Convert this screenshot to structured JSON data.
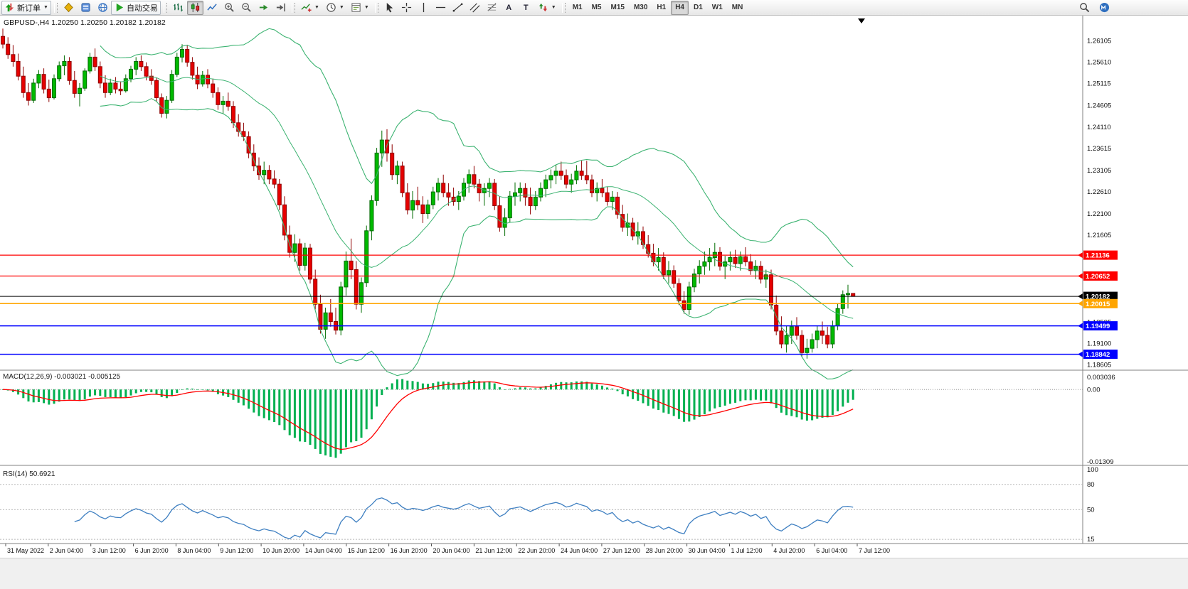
{
  "toolbar": {
    "new_order": {
      "label": "新订单"
    },
    "autotrading": {
      "label": "自动交易"
    },
    "panel_buttons": [
      "market-watch-icon",
      "navigator-icon",
      "community-icon"
    ],
    "chart_buttons": [
      "bars-icon",
      "candles-icon",
      "line-chart-icon",
      "zoom-in-icon",
      "zoom-out-icon",
      "autoscroll-icon",
      "chart-shift-icon"
    ],
    "dropdown_buttons": [
      "indicators-icon",
      "periods-icon",
      "templates-icon"
    ],
    "line_tools": [
      "cursor-icon",
      "crosshair-icon",
      "vline-icon",
      "hline-icon",
      "trendline-icon",
      "channel-icon",
      "fibonacci-icon",
      "text-icon",
      "label-icon",
      "arrows-icon"
    ],
    "text_tool_glyphs": {
      "text-icon": "A",
      "label-icon": "T"
    },
    "timeframes": [
      "M1",
      "M5",
      "M15",
      "M30",
      "H1",
      "H4",
      "D1",
      "W1",
      "MN"
    ],
    "active_timeframe": "H4",
    "active_chart_type": "candles-icon",
    "right_buttons": [
      "search-icon",
      "mql-icon"
    ]
  },
  "chart_header": {
    "symbol_period": "GBPUSD-,H4",
    "ohlc": "1.20250 1.20250 1.20182 1.20182"
  },
  "colors": {
    "bull": "#00BA00",
    "bear": "#E60000",
    "bull_stroke": "#006B00",
    "bear_stroke": "#8F0000",
    "bollinger": "#3CB371",
    "macd_hist": "#00B050",
    "macd_signal": "#FF0000",
    "rsi": "#3E7FC1",
    "axis_text": "#111111",
    "separator": "#808080"
  },
  "chart_data": {
    "type": "candlestick",
    "symbol": "GBPUSD",
    "period": "H4",
    "bollinger": {
      "period": 20,
      "deviations": 2
    },
    "price_ticks": [
      1.26105,
      1.2561,
      1.25115,
      1.24605,
      1.2411,
      1.23615,
      1.23105,
      1.2261,
      1.221,
      1.21605,
      1.2111,
      1.206,
      1.20105,
      1.19595,
      1.191,
      1.18605
    ],
    "levels": [
      {
        "price": 1.21136,
        "color": "#FF0000",
        "lw": 1.3
      },
      {
        "price": 1.20652,
        "color": "#FF0000",
        "lw": 1.3
      },
      {
        "price": 1.20182,
        "color": "#000000",
        "lw": 1.0
      },
      {
        "price": 1.20015,
        "color": "#FFA500",
        "lw": 1.5
      },
      {
        "price": 1.19499,
        "color": "#0000FF",
        "lw": 1.5
      },
      {
        "price": 1.18842,
        "color": "#0000FF",
        "lw": 1.5
      }
    ],
    "macd": {
      "name": "MACD(12,26,9)",
      "values": "-0.003021 -0.005125",
      "scale_top": "0.003036",
      "scale_zero": "0.00",
      "scale_bottom": "-0.01309",
      "fast": 12,
      "slow": 26,
      "signal": 9
    },
    "rsi": {
      "name": "RSI(14)",
      "value": "50.6921",
      "period": 14,
      "scale_labels": [
        100,
        80,
        50,
        15
      ],
      "range": [
        10,
        100
      ],
      "levels": [
        80,
        50,
        15
      ]
    },
    "time_labels": [
      "31 May 2022",
      "2 Jun 04:00",
      "3 Jun 12:00",
      "6 Jun 20:00",
      "8 Jun 04:00",
      "9 Jun 12:00",
      "10 Jun 20:00",
      "14 Jun 04:00",
      "15 Jun 12:00",
      "16 Jun 20:00",
      "20 Jun 04:00",
      "21 Jun 12:00",
      "22 Jun 20:00",
      "24 Jun 04:00",
      "27 Jun 12:00",
      "28 Jun 20:00",
      "30 Jun 04:00",
      "1 Jul 12:00",
      "4 Jul 20:00",
      "6 Jul 04:00",
      "7 Jul 12:00"
    ],
    "candles": [
      [
        1.262,
        1.2638,
        1.2592,
        1.2602
      ],
      [
        1.2602,
        1.2618,
        1.2568,
        1.2578
      ],
      [
        1.2578,
        1.26,
        1.255,
        1.2562
      ],
      [
        1.2562,
        1.258,
        1.2518,
        1.2528
      ],
      [
        1.2528,
        1.255,
        1.2478,
        1.249
      ],
      [
        1.249,
        1.2512,
        1.246,
        1.2472
      ],
      [
        1.2472,
        1.2522,
        1.2466,
        1.2512
      ],
      [
        1.2512,
        1.2542,
        1.25,
        1.2532
      ],
      [
        1.2532,
        1.2546,
        1.2488,
        1.2498
      ],
      [
        1.2498,
        1.252,
        1.2468,
        1.2478
      ],
      [
        1.2478,
        1.2532,
        1.2474,
        1.2522
      ],
      [
        1.2522,
        1.2562,
        1.2516,
        1.2552
      ],
      [
        1.2552,
        1.2576,
        1.253,
        1.2562
      ],
      [
        1.2562,
        1.2572,
        1.2508,
        1.2518
      ],
      [
        1.2518,
        1.254,
        1.2478,
        1.2488
      ],
      [
        1.2488,
        1.2512,
        1.2458,
        1.25
      ],
      [
        1.25,
        1.2546,
        1.2494,
        1.254
      ],
      [
        1.254,
        1.2582,
        1.2534,
        1.2572
      ],
      [
        1.2572,
        1.2592,
        1.254,
        1.255
      ],
      [
        1.255,
        1.2562,
        1.25,
        1.2512
      ],
      [
        1.2512,
        1.253,
        1.2478,
        1.249
      ],
      [
        1.249,
        1.2522,
        1.2484,
        1.2512
      ],
      [
        1.2512,
        1.2526,
        1.2488,
        1.2498
      ],
      [
        1.2498,
        1.2516,
        1.2484,
        1.2494
      ],
      [
        1.2494,
        1.2532,
        1.249,
        1.2522
      ],
      [
        1.2522,
        1.2552,
        1.2514,
        1.2544
      ],
      [
        1.2544,
        1.2572,
        1.253,
        1.2562
      ],
      [
        1.2562,
        1.2576,
        1.254,
        1.255
      ],
      [
        1.255,
        1.256,
        1.2518,
        1.2528
      ],
      [
        1.2528,
        1.2544,
        1.2508,
        1.2518
      ],
      [
        1.2518,
        1.2524,
        1.2468,
        1.2478
      ],
      [
        1.2478,
        1.2488,
        1.2432,
        1.2442
      ],
      [
        1.2442,
        1.2482,
        1.243,
        1.2472
      ],
      [
        1.2472,
        1.2542,
        1.2466,
        1.2532
      ],
      [
        1.2532,
        1.2582,
        1.2526,
        1.2572
      ],
      [
        1.2572,
        1.2602,
        1.256,
        1.259
      ],
      [
        1.259,
        1.2599,
        1.255,
        1.256
      ],
      [
        1.256,
        1.2572,
        1.252,
        1.253
      ],
      [
        1.253,
        1.255,
        1.2498,
        1.251
      ],
      [
        1.251,
        1.254,
        1.2504,
        1.253
      ],
      [
        1.253,
        1.2544,
        1.25,
        1.251
      ],
      [
        1.251,
        1.2522,
        1.2478,
        1.249
      ],
      [
        1.249,
        1.2502,
        1.245,
        1.2462
      ],
      [
        1.2462,
        1.2482,
        1.244,
        1.247
      ],
      [
        1.247,
        1.249,
        1.2448,
        1.2458
      ],
      [
        1.2458,
        1.247,
        1.2408,
        1.242
      ],
      [
        1.242,
        1.244,
        1.2388,
        1.24
      ],
      [
        1.24,
        1.242,
        1.2378,
        1.2388
      ],
      [
        1.2388,
        1.24,
        1.2338,
        1.235
      ],
      [
        1.235,
        1.237,
        1.2308,
        1.232
      ],
      [
        1.232,
        1.234,
        1.2288,
        1.23
      ],
      [
        1.23,
        1.233,
        1.2278,
        1.231
      ],
      [
        1.231,
        1.2322,
        1.2278,
        1.229
      ],
      [
        1.229,
        1.231,
        1.2268,
        1.2278
      ],
      [
        1.2278,
        1.229,
        1.2218,
        1.223
      ],
      [
        1.223,
        1.225,
        1.2148,
        1.216
      ],
      [
        1.216,
        1.2182,
        1.2108,
        1.212
      ],
      [
        1.212,
        1.2162,
        1.2098,
        1.214
      ],
      [
        1.214,
        1.2152,
        1.2078,
        1.209
      ],
      [
        1.209,
        1.2142,
        1.2078,
        1.213
      ],
      [
        1.213,
        1.214,
        1.2048,
        1.2058
      ],
      [
        1.2058,
        1.208,
        1.1988,
        1.2
      ],
      [
        1.2,
        1.2022,
        1.1932,
        1.1942
      ],
      [
        1.1942,
        1.1992,
        1.192,
        1.198
      ],
      [
        1.198,
        1.2012,
        1.1948,
        1.196
      ],
      [
        1.196,
        1.1992,
        1.193,
        1.194
      ],
      [
        1.194,
        1.2052,
        1.1928,
        1.204
      ],
      [
        1.204,
        1.2122,
        1.202,
        1.21
      ],
      [
        1.21,
        1.2152,
        1.2058,
        1.208
      ],
      [
        1.208,
        1.21,
        1.1988,
        1.2
      ],
      [
        1.2,
        1.2062,
        1.198,
        1.205
      ],
      [
        1.205,
        1.2182,
        1.204,
        1.217
      ],
      [
        1.217,
        1.2252,
        1.2148,
        1.224
      ],
      [
        1.224,
        1.2362,
        1.2228,
        1.235
      ],
      [
        1.235,
        1.2402,
        1.2318,
        1.238
      ],
      [
        1.238,
        1.2405,
        1.233,
        1.235
      ],
      [
        1.235,
        1.237,
        1.2288,
        1.23
      ],
      [
        1.23,
        1.2332,
        1.2278,
        1.232
      ],
      [
        1.232,
        1.233,
        1.2248,
        1.2258
      ],
      [
        1.2258,
        1.228,
        1.2208,
        1.2218
      ],
      [
        1.2218,
        1.2262,
        1.2198,
        1.224
      ],
      [
        1.224,
        1.2272,
        1.2218,
        1.223
      ],
      [
        1.223,
        1.225,
        1.2188,
        1.221
      ],
      [
        1.221,
        1.2242,
        1.2198,
        1.223
      ],
      [
        1.223,
        1.2272,
        1.222,
        1.226
      ],
      [
        1.226,
        1.2292,
        1.224,
        1.228
      ],
      [
        1.228,
        1.23,
        1.2248,
        1.2258
      ],
      [
        1.2258,
        1.228,
        1.2228,
        1.2248
      ],
      [
        1.2248,
        1.227,
        1.2228,
        1.2238
      ],
      [
        1.2238,
        1.2262,
        1.2218,
        1.225
      ],
      [
        1.225,
        1.2292,
        1.224,
        1.228
      ],
      [
        1.228,
        1.2312,
        1.2258,
        1.23
      ],
      [
        1.23,
        1.232,
        1.2268,
        1.2278
      ],
      [
        1.2278,
        1.229,
        1.2238,
        1.2258
      ],
      [
        1.2258,
        1.228,
        1.2228,
        1.2268
      ],
      [
        1.2268,
        1.2292,
        1.2248,
        1.228
      ],
      [
        1.228,
        1.229,
        1.2218,
        1.2228
      ],
      [
        1.2228,
        1.225,
        1.2168,
        1.2178
      ],
      [
        1.2178,
        1.2222,
        1.2158,
        1.22
      ],
      [
        1.22,
        1.2262,
        1.219,
        1.225
      ],
      [
        1.225,
        1.2282,
        1.2228,
        1.2258
      ],
      [
        1.2258,
        1.2282,
        1.2238,
        1.2268
      ],
      [
        1.2268,
        1.228,
        1.2228,
        1.2248
      ],
      [
        1.2248,
        1.227,
        1.2208,
        1.2228
      ],
      [
        1.2228,
        1.2262,
        1.2218,
        1.2248
      ],
      [
        1.2248,
        1.2282,
        1.2238,
        1.2268
      ],
      [
        1.2268,
        1.23,
        1.2248,
        1.2288
      ],
      [
        1.2288,
        1.2312,
        1.2268,
        1.2298
      ],
      [
        1.2298,
        1.2322,
        1.2278,
        1.2308
      ],
      [
        1.2308,
        1.233,
        1.2288,
        1.2298
      ],
      [
        1.2298,
        1.2312,
        1.2268,
        1.2278
      ],
      [
        1.2278,
        1.2302,
        1.2258,
        1.2288
      ],
      [
        1.2288,
        1.2322,
        1.2278,
        1.2308
      ],
      [
        1.2308,
        1.2332,
        1.2288,
        1.2298
      ],
      [
        1.2298,
        1.2332,
        1.2278,
        1.2288
      ],
      [
        1.2288,
        1.23,
        1.2248,
        1.2258
      ],
      [
        1.2258,
        1.2282,
        1.2238,
        1.2268
      ],
      [
        1.2268,
        1.229,
        1.2248,
        1.2258
      ],
      [
        1.2258,
        1.2272,
        1.2228,
        1.2238
      ],
      [
        1.2238,
        1.2262,
        1.2218,
        1.2248
      ],
      [
        1.2248,
        1.226,
        1.2198,
        1.2208
      ],
      [
        1.2208,
        1.223,
        1.2168,
        1.2178
      ],
      [
        1.2178,
        1.221,
        1.2158,
        1.2188
      ],
      [
        1.2188,
        1.22,
        1.2148,
        1.2158
      ],
      [
        1.2158,
        1.219,
        1.2138,
        1.2168
      ],
      [
        1.2168,
        1.218,
        1.2128,
        1.2138
      ],
      [
        1.2138,
        1.216,
        1.2108,
        1.2118
      ],
      [
        1.2118,
        1.214,
        1.2088,
        1.2098
      ],
      [
        1.2098,
        1.213,
        1.2078,
        1.2108
      ],
      [
        1.2108,
        1.212,
        1.2058,
        1.2068
      ],
      [
        1.2068,
        1.21,
        1.2048,
        1.2078
      ],
      [
        1.2078,
        1.209,
        1.2038,
        1.2048
      ],
      [
        1.2048,
        1.206,
        1.1998,
        1.2008
      ],
      [
        1.2008,
        1.203,
        1.1978,
        1.1988
      ],
      [
        1.1988,
        1.2052,
        1.1976,
        1.204
      ],
      [
        1.204,
        1.2082,
        1.2028,
        1.207
      ],
      [
        1.207,
        1.2102,
        1.2048,
        1.2088
      ],
      [
        1.2088,
        1.2122,
        1.2068,
        1.2098
      ],
      [
        1.2098,
        1.213,
        1.2078,
        1.2108
      ],
      [
        1.2108,
        1.2142,
        1.2088,
        1.212
      ],
      [
        1.212,
        1.2132,
        1.2078,
        1.2088
      ],
      [
        1.2088,
        1.2112,
        1.2058,
        1.2098
      ],
      [
        1.2098,
        1.2122,
        1.2078,
        1.2108
      ],
      [
        1.2108,
        1.2126,
        1.2084,
        1.2094
      ],
      [
        1.2094,
        1.2122,
        1.2078,
        1.211
      ],
      [
        1.211,
        1.2132,
        1.2088,
        1.2098
      ],
      [
        1.2098,
        1.2116,
        1.2068,
        1.2078
      ],
      [
        1.2078,
        1.2102,
        1.2058,
        1.2088
      ],
      [
        1.2088,
        1.21,
        1.2048,
        1.2058
      ],
      [
        1.2058,
        1.208,
        1.2038,
        1.2068
      ],
      [
        1.2068,
        1.208,
        1.1988,
        1.1998
      ],
      [
        1.1998,
        1.202,
        1.1928,
        1.1938
      ],
      [
        1.1938,
        1.1972,
        1.1898,
        1.1908
      ],
      [
        1.1908,
        1.195,
        1.1888,
        1.1928
      ],
      [
        1.1928,
        1.1962,
        1.1908,
        1.1948
      ],
      [
        1.1948,
        1.197,
        1.1918,
        1.1928
      ],
      [
        1.1928,
        1.194,
        1.1878,
        1.1888
      ],
      [
        1.1888,
        1.192,
        1.1874,
        1.1898
      ],
      [
        1.1898,
        1.1932,
        1.1888,
        1.1918
      ],
      [
        1.1918,
        1.195,
        1.1898,
        1.1938
      ],
      [
        1.1938,
        1.196,
        1.1908,
        1.1928
      ],
      [
        1.1928,
        1.1948,
        1.1898,
        1.1908
      ],
      [
        1.1908,
        1.1962,
        1.1898,
        1.195
      ],
      [
        1.195,
        1.2002,
        1.194,
        1.199
      ],
      [
        1.199,
        1.2032,
        1.1978,
        1.2022
      ],
      [
        1.2022,
        1.2045,
        1.199,
        1.2025
      ],
      [
        1.2025,
        1.2025,
        1.20182,
        1.20182
      ]
    ]
  }
}
